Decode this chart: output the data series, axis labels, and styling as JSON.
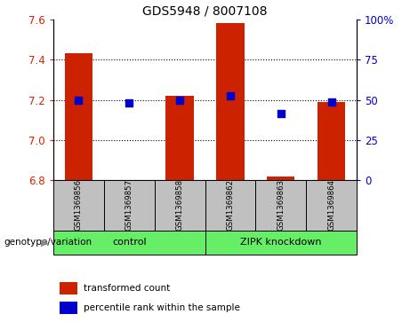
{
  "title": "GDS5948 / 8007108",
  "samples": [
    "GSM1369856",
    "GSM1369857",
    "GSM1369858",
    "GSM1369862",
    "GSM1369863",
    "GSM1369864"
  ],
  "red_values": [
    7.43,
    6.8,
    7.22,
    7.58,
    6.82,
    7.19
  ],
  "blue_values_left": [
    7.2,
    7.185,
    7.2,
    7.22,
    7.13,
    7.19
  ],
  "ylim_left": [
    6.8,
    7.6
  ],
  "ylim_right": [
    0,
    100
  ],
  "yticks_left": [
    6.8,
    7.0,
    7.2,
    7.4,
    7.6
  ],
  "yticks_right": [
    0,
    25,
    50,
    75,
    100
  ],
  "ytick_labels_right": [
    "0",
    "25",
    "50",
    "75",
    "100%"
  ],
  "bar_color": "#CC2200",
  "dot_color": "#0000CC",
  "bar_width": 0.55,
  "dot_size": 40,
  "grid_color": "black",
  "tick_color_left": "#CC2200",
  "tick_color_right": "#0000CC",
  "legend_red_label": "transformed count",
  "legend_blue_label": "percentile rank within the sample",
  "group_label": "genotype/variation",
  "group_box_color": "#C0C0C0",
  "group_green_color": "#66EE66",
  "group_specs": [
    {
      "label": "control",
      "start": 0,
      "end": 2
    },
    {
      "label": "ZIPK knockdown",
      "start": 3,
      "end": 5
    }
  ]
}
